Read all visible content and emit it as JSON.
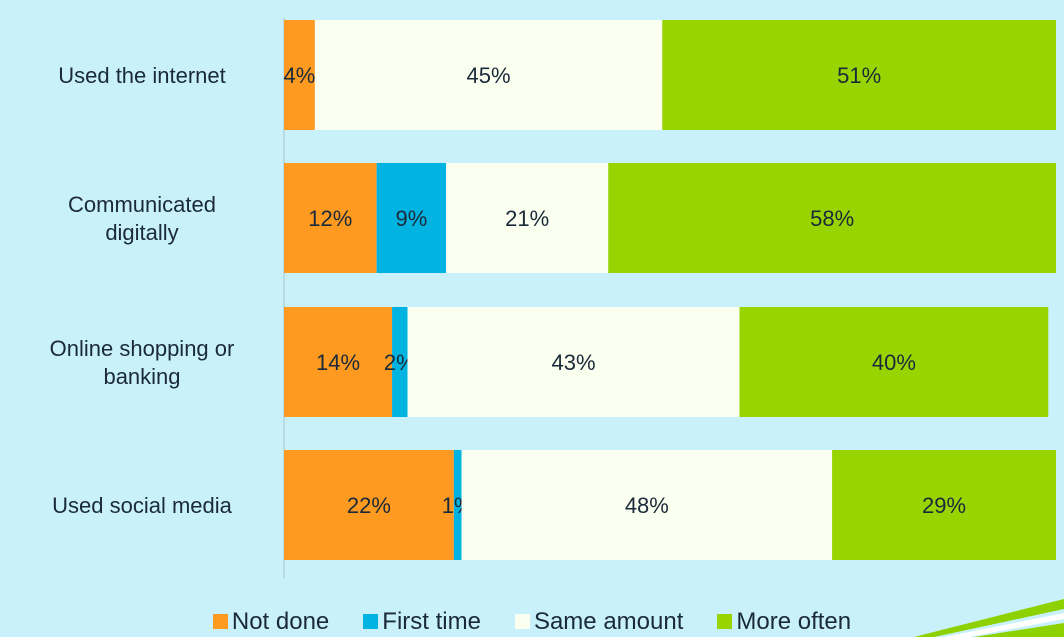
{
  "chart_data": {
    "type": "bar",
    "orientation": "horizontal",
    "stacked": true,
    "categories": [
      "Used the internet",
      "Communicated digitally",
      "Online shopping or banking",
      "Used social media"
    ],
    "series": [
      {
        "name": "Not done",
        "color": "#fd9a1f",
        "values": [
          4,
          12,
          14,
          22
        ],
        "labels": [
          "4%",
          "12%",
          "14%",
          "22%"
        ]
      },
      {
        "name": "First time",
        "color": "#01b3e1",
        "values": [
          0,
          9,
          2,
          1
        ],
        "labels": [
          "",
          "9%",
          "2%",
          "1%"
        ]
      },
      {
        "name": "Same amount",
        "color": "#fafff0",
        "values": [
          45,
          21,
          43,
          48
        ],
        "labels": [
          "45%",
          "21%",
          "43%",
          "48%"
        ]
      },
      {
        "name": "More often",
        "color": "#98d500",
        "values": [
          51,
          58,
          40,
          29
        ],
        "labels": [
          "51%",
          "58%",
          "40%",
          "29%"
        ]
      }
    ],
    "xlim": [
      0,
      100
    ],
    "legend_position": "bottom",
    "grid": false
  }
}
